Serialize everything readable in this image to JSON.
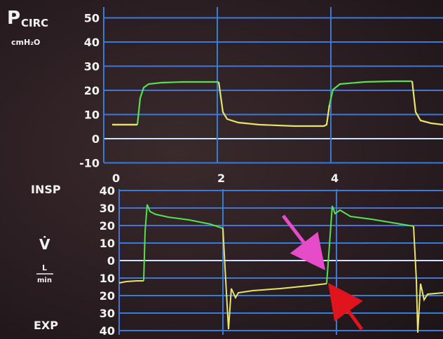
{
  "top_panel": {
    "title_main": "P",
    "title_sub": "CIRC",
    "unit": "cmH₂O",
    "y_ticks": [
      "50",
      "40",
      "30",
      "20",
      "10",
      "0",
      "-10"
    ],
    "y_values": [
      50,
      40,
      30,
      20,
      10,
      0,
      -10
    ]
  },
  "time_axis": {
    "ticks": [
      "0",
      "2",
      "4"
    ],
    "values": [
      0,
      2,
      4
    ]
  },
  "bottom_panel": {
    "insp_label": "INSP",
    "exp_label": "EXP",
    "symbol": "V̇",
    "unit_num": "L",
    "unit_den": "min",
    "y_ticks_upper": [
      "40",
      "30",
      "20",
      "10",
      "0"
    ],
    "y_ticks_lower": [
      "10",
      "20",
      "30",
      "40"
    ],
    "y_values_upper": [
      40,
      30,
      20,
      10,
      0
    ],
    "y_values_lower": [
      -10,
      -20,
      -30,
      -40
    ]
  },
  "colors": {
    "grid": "#3d79d6",
    "waveform_insp": "#58e050",
    "waveform_exp": "#e8e36a",
    "arrow_pink": "#e64cc8",
    "arrow_red": "#e0141c"
  },
  "arrows": [
    {
      "name": "pink-arrow",
      "color": "#e64cc8"
    },
    {
      "name": "red-arrow",
      "color": "#e0141c"
    }
  ]
}
